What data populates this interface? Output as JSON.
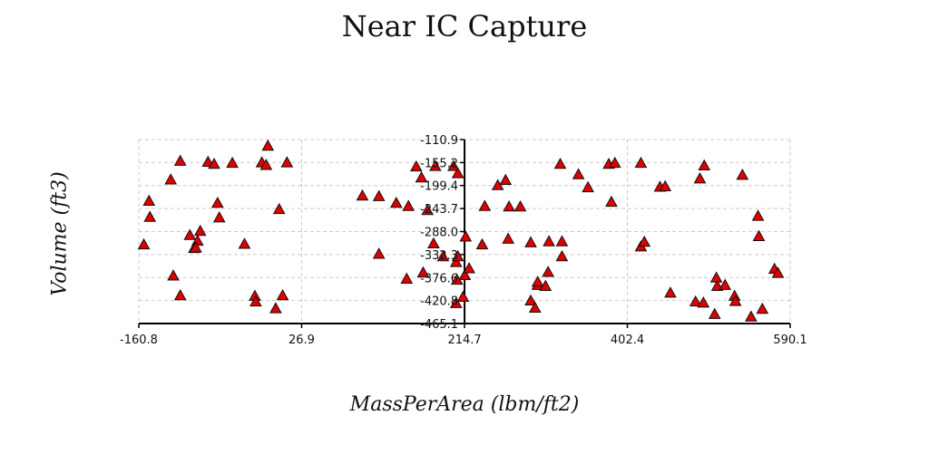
{
  "chart_data": {
    "type": "scatter",
    "title": "Near IC Capture",
    "xlabel": "MassPerArea (lbm/ft2)",
    "ylabel": "Volume (ft3)",
    "xlim": [
      -160.8,
      590.1
    ],
    "ylim": [
      -465.1,
      -110.9
    ],
    "xticks": [
      "-160.8",
      "26.9",
      "214.7",
      "402.4",
      "590.1"
    ],
    "yticks": [
      "-110.9",
      "-155.2",
      "-199.4",
      "-243.7",
      "-288.0",
      "-332.3",
      "-376.6",
      "-420.8",
      "-465.1"
    ],
    "grid": true,
    "marker": "triangle",
    "marker_color": "#e00000",
    "points": [
      [
        -12,
        -123
      ],
      [
        -155,
        -313
      ],
      [
        -149,
        -229
      ],
      [
        -148,
        -260
      ],
      [
        -124,
        -188
      ],
      [
        -121,
        -373
      ],
      [
        -81,
        -154
      ],
      [
        -74,
        -158
      ],
      [
        -53,
        -156
      ],
      [
        -19,
        -155
      ],
      [
        -14,
        -160
      ],
      [
        10,
        -155
      ],
      [
        -113,
        -152
      ],
      [
        -68,
        -261
      ],
      [
        -70,
        -233
      ],
      [
        -102,
        -295
      ],
      [
        -93,
        -306
      ],
      [
        -97,
        -320
      ],
      [
        -113,
        -411
      ],
      [
        -95,
        -319
      ],
      [
        1,
        -245
      ],
      [
        -39,
        -312
      ],
      [
        -27,
        -412
      ],
      [
        -26,
        -423
      ],
      [
        5,
        -411
      ],
      [
        -3,
        -436
      ],
      [
        -90,
        -287
      ],
      [
        97,
        -219
      ],
      [
        116,
        -220
      ],
      [
        136,
        -233
      ],
      [
        159,
        -163
      ],
      [
        165,
        -184
      ],
      [
        150,
        -239
      ],
      [
        172,
        -247
      ],
      [
        179,
        -311
      ],
      [
        190,
        -336
      ],
      [
        116,
        -331
      ],
      [
        148,
        -379
      ],
      [
        202,
        -162
      ],
      [
        207,
        -176
      ],
      [
        181,
        -162
      ],
      [
        167,
        -367
      ],
      [
        206,
        -381
      ],
      [
        205,
        -347
      ],
      [
        207,
        -336
      ],
      [
        215,
        -372
      ],
      [
        213,
        -414
      ],
      [
        205,
        -426
      ],
      [
        216,
        -298
      ],
      [
        220,
        -359
      ],
      [
        235,
        -313
      ],
      [
        238,
        -239
      ],
      [
        253,
        -199
      ],
      [
        262,
        -189
      ],
      [
        266,
        -240
      ],
      [
        279,
        -240
      ],
      [
        265,
        -302
      ],
      [
        291,
        -309
      ],
      [
        312,
        -307
      ],
      [
        327,
        -307
      ],
      [
        327,
        -336
      ],
      [
        299,
        -391
      ],
      [
        299,
        -385
      ],
      [
        291,
        -421
      ],
      [
        308,
        -393
      ],
      [
        311,
        -366
      ],
      [
        296,
        -435
      ],
      [
        325,
        -158
      ],
      [
        346,
        -178
      ],
      [
        357,
        -203
      ],
      [
        381,
        -158
      ],
      [
        388,
        -156
      ],
      [
        384,
        -231
      ],
      [
        418,
        -156
      ],
      [
        440,
        -202
      ],
      [
        446,
        -201
      ],
      [
        418,
        -317
      ],
      [
        422,
        -308
      ],
      [
        452,
        -406
      ],
      [
        491,
        -161
      ],
      [
        486,
        -186
      ],
      [
        535,
        -179
      ],
      [
        553,
        -258
      ],
      [
        554,
        -297
      ],
      [
        572,
        -360
      ],
      [
        576,
        -368
      ],
      [
        558,
        -437
      ],
      [
        505,
        -377
      ],
      [
        481,
        -423
      ],
      [
        490,
        -425
      ],
      [
        503,
        -447
      ],
      [
        526,
        -412
      ],
      [
        527,
        -422
      ],
      [
        545,
        -452
      ],
      [
        506,
        -393
      ],
      [
        515,
        -391
      ]
    ]
  }
}
